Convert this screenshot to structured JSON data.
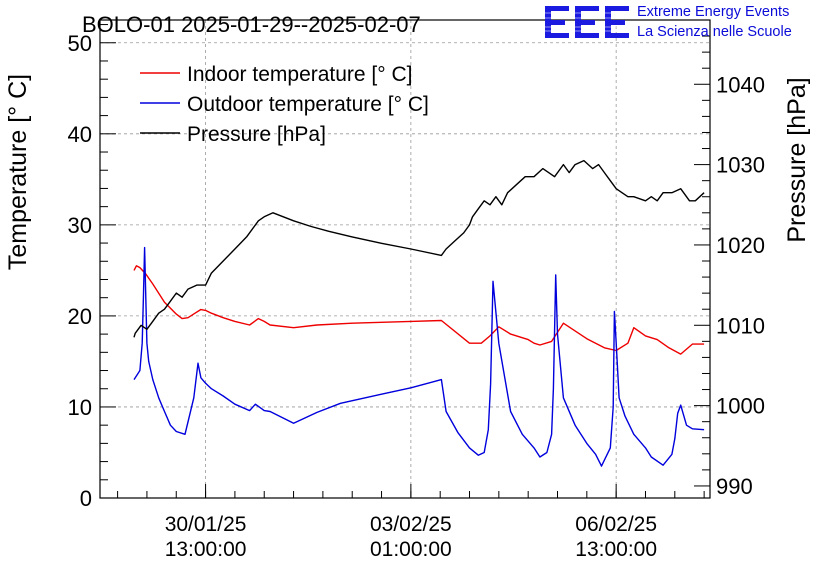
{
  "chart_data": {
    "type": "line",
    "title": "BOLO-01 2025-01-29--2025-02-07",
    "xlabel": "",
    "ylabel": "Temperature [° C]",
    "y2label": "Pressure [hPa]",
    "x_ticks": [
      {
        "date": "30/01/25",
        "time": "13:00:00",
        "value": 1.5
      },
      {
        "date": "03/02/25",
        "time": "01:00:00",
        "value": 5.0
      },
      {
        "date": "06/02/25",
        "time": "13:00:00",
        "value": 8.5
      }
    ],
    "xlim": [
      -0.3,
      10.1
    ],
    "ylim": [
      0,
      52.5
    ],
    "yticks": [
      0,
      10,
      20,
      30,
      40,
      50
    ],
    "y2lim": [
      988.5,
      1048
    ],
    "y2ticks": [
      990,
      1000,
      1010,
      1020,
      1030,
      1040
    ],
    "grid": true,
    "legend_position": "top-left",
    "series": [
      {
        "name": "Indoor temperature [° C]",
        "color": "#ee0000",
        "axis": "left",
        "x": [
          0.28,
          0.32,
          0.38,
          0.48,
          0.6,
          0.8,
          1.0,
          1.1,
          1.2,
          1.32,
          1.42,
          1.5,
          1.6,
          1.8,
          2.0,
          2.25,
          2.4,
          2.5,
          2.6,
          3.0,
          3.4,
          4.0,
          4.5,
          5.0,
          5.52,
          6.0,
          6.2,
          6.35,
          6.5,
          6.7,
          7.0,
          7.1,
          7.2,
          7.4,
          7.6,
          8.0,
          8.15,
          8.3,
          8.5,
          8.7,
          8.8,
          9.0,
          9.2,
          9.4,
          9.6,
          9.8,
          10.0
        ],
        "y": [
          25.0,
          25.5,
          25.3,
          24.6,
          23.5,
          21.5,
          20.2,
          19.7,
          19.8,
          20.3,
          20.7,
          20.6,
          20.3,
          19.8,
          19.4,
          19.0,
          19.7,
          19.4,
          19.0,
          18.7,
          19.0,
          19.2,
          19.3,
          19.4,
          19.5,
          17.0,
          17.0,
          17.8,
          18.8,
          18.0,
          17.4,
          17.0,
          16.8,
          17.2,
          19.2,
          17.5,
          17.0,
          16.5,
          16.2,
          17.0,
          18.7,
          17.8,
          17.4,
          16.5,
          15.8,
          16.9,
          16.9
        ]
      },
      {
        "name": "Outdoor temperature [° C]",
        "color": "#0000dd",
        "axis": "left",
        "x": [
          0.28,
          0.34,
          0.38,
          0.42,
          0.44,
          0.46,
          0.48,
          0.5,
          0.53,
          0.6,
          0.7,
          0.8,
          0.9,
          1.0,
          1.15,
          1.3,
          1.37,
          1.42,
          1.5,
          1.6,
          1.8,
          2.0,
          2.25,
          2.35,
          2.5,
          2.6,
          3.0,
          3.4,
          3.8,
          4.5,
          5.0,
          5.52,
          5.6,
          5.8,
          6.0,
          6.15,
          6.25,
          6.32,
          6.36,
          6.4,
          6.5,
          6.7,
          6.9,
          7.1,
          7.2,
          7.32,
          7.4,
          7.43,
          7.47,
          7.5,
          7.6,
          7.8,
          8.0,
          8.15,
          8.25,
          8.4,
          8.45,
          8.47,
          8.5,
          8.55,
          8.65,
          8.8,
          9.0,
          9.1,
          9.3,
          9.45,
          9.5,
          9.55,
          9.6,
          9.7,
          9.8,
          10.0
        ],
        "y": [
          13.0,
          13.6,
          14.0,
          17.0,
          22.0,
          27.5,
          22.0,
          17.0,
          15.0,
          13.0,
          11.0,
          9.5,
          8.0,
          7.3,
          7.0,
          11.0,
          14.8,
          13.2,
          12.6,
          12.0,
          11.2,
          10.3,
          9.6,
          10.3,
          9.6,
          9.5,
          8.2,
          9.4,
          10.4,
          11.4,
          12.1,
          13.0,
          9.5,
          7.2,
          5.5,
          4.7,
          5.0,
          7.5,
          12.5,
          23.8,
          17.0,
          9.5,
          7.0,
          5.5,
          4.5,
          5.0,
          7.0,
          12.0,
          24.5,
          18.0,
          11.0,
          8.0,
          6.0,
          4.8,
          3.5,
          5.5,
          10.0,
          20.5,
          17.0,
          11.0,
          9.0,
          7.0,
          5.5,
          4.5,
          3.6,
          4.8,
          6.5,
          9.3,
          10.2,
          8.0,
          7.6,
          7.5
        ]
      },
      {
        "name": "Pressure [hPa]",
        "color": "#000000",
        "axis": "right",
        "x": [
          0.28,
          0.3,
          0.4,
          0.5,
          0.6,
          0.7,
          0.8,
          0.9,
          1.0,
          1.1,
          1.2,
          1.35,
          1.5,
          1.6,
          1.8,
          2.0,
          2.2,
          2.4,
          2.5,
          2.65,
          3.0,
          3.3,
          3.6,
          4.0,
          4.5,
          5.0,
          5.52,
          5.6,
          5.75,
          5.9,
          6.0,
          6.05,
          6.15,
          6.25,
          6.35,
          6.45,
          6.55,
          6.65,
          6.8,
          6.95,
          7.1,
          7.25,
          7.45,
          7.6,
          7.7,
          7.8,
          7.95,
          8.1,
          8.2,
          8.3,
          8.4,
          8.5,
          8.6,
          8.7,
          8.8,
          9.0,
          9.1,
          9.2,
          9.3,
          9.45,
          9.6,
          9.75,
          9.85,
          10.0
        ],
        "y": [
          1008.5,
          1009.0,
          1010.0,
          1009.5,
          1010.5,
          1011.5,
          1012.0,
          1013.0,
          1014.0,
          1013.5,
          1014.5,
          1015.0,
          1015.0,
          1016.5,
          1018.0,
          1019.5,
          1021.0,
          1023.0,
          1023.5,
          1024.0,
          1023.0,
          1022.3,
          1021.7,
          1021.0,
          1020.2,
          1019.5,
          1018.7,
          1019.5,
          1020.5,
          1021.5,
          1022.5,
          1023.5,
          1024.5,
          1025.5,
          1025.0,
          1026.0,
          1025.0,
          1026.5,
          1027.5,
          1028.5,
          1028.5,
          1029.5,
          1028.5,
          1030.0,
          1029.0,
          1030.0,
          1030.5,
          1029.5,
          1030.0,
          1029.0,
          1028.0,
          1027.0,
          1026.5,
          1026.0,
          1026.0,
          1025.5,
          1026.0,
          1025.5,
          1026.5,
          1026.5,
          1027.0,
          1025.5,
          1025.5,
          1026.5
        ]
      }
    ]
  },
  "branding": {
    "logo_text": "EEE",
    "line1": "Extreme Energy Events",
    "line2": "La Scienza nelle Scuole",
    "color": "#0b0bd8"
  }
}
